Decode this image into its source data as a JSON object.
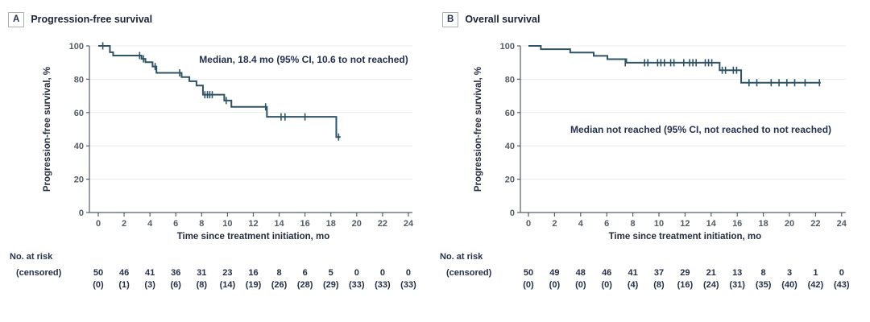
{
  "colors": {
    "curve": "#2e5364",
    "grid": "#ececec",
    "axis": "#555e66",
    "tick_text": "#525c64",
    "dark_text": "#243049",
    "annotation_text": "#24304f",
    "panel_title_text": "#1b2334"
  },
  "chart_data": [
    {
      "type": "line",
      "subtype": "kaplan_meier_step",
      "panel_label": "A",
      "title": "Progression-free survival",
      "ylabel": "Progression-free survival, %",
      "xlabel": "Time since treatment initiation, mo",
      "annotation": "Median, 18.4 mo (95% CI, 10.6 to not reached)",
      "xlim": [
        0,
        24
      ],
      "ylim": [
        0,
        100
      ],
      "xticks": [
        0,
        2,
        4,
        6,
        8,
        10,
        12,
        14,
        16,
        18,
        20,
        22,
        24
      ],
      "yticks": [
        0,
        20,
        40,
        60,
        80,
        100
      ],
      "grid": "horizontal-light",
      "legend": "none",
      "series": [
        {
          "name": "Progression-free survival",
          "start_level": 100,
          "drops": [
            [
              0.9,
              96.2
            ],
            [
              1.15,
              94.2
            ],
            [
              3.35,
              92.2
            ],
            [
              3.65,
              90.2
            ],
            [
              4.2,
              87.6
            ],
            [
              4.5,
              83.8
            ],
            [
              6.45,
              81.3
            ],
            [
              7.05,
              78.8
            ],
            [
              7.6,
              76.2
            ],
            [
              8.1,
              70.7
            ],
            [
              9.75,
              67.2
            ],
            [
              10.3,
              63.4
            ],
            [
              13.05,
              57.4
            ],
            [
              18.42,
              45.3
            ]
          ],
          "end_time": 18.75,
          "censor_marks": [
            [
              0.35,
              100
            ],
            [
              3.2,
              94.2
            ],
            [
              3.5,
              92.2
            ],
            [
              4.4,
              87.6
            ],
            [
              6.3,
              83.8
            ],
            [
              8.25,
              70.7
            ],
            [
              8.45,
              70.7
            ],
            [
              8.63,
              70.7
            ],
            [
              8.82,
              70.7
            ],
            [
              9.9,
              67.2
            ],
            [
              12.95,
              63.4
            ],
            [
              14.15,
              57.4
            ],
            [
              14.45,
              57.4
            ],
            [
              16.0,
              57.4
            ],
            [
              18.6,
              45.3
            ]
          ]
        }
      ],
      "at_risk": {
        "row1_label": "No. at risk",
        "row2_label": "(censored)",
        "times": [
          0,
          2,
          4,
          6,
          8,
          10,
          12,
          14,
          16,
          18,
          20,
          22,
          24
        ],
        "n_at_risk": [
          "50",
          "46",
          "41",
          "36",
          "31",
          "23",
          "16",
          "8",
          "6",
          "5",
          "0",
          "0",
          "0"
        ],
        "n_censored": [
          "(0)",
          "(1)",
          "(3)",
          "(6)",
          "(8)",
          "(14)",
          "(19)",
          "(26)",
          "(28)",
          "(29)",
          "(33)",
          "(33)",
          "(33)"
        ]
      }
    },
    {
      "type": "line",
      "subtype": "kaplan_meier_step",
      "panel_label": "B",
      "title": "Overall survival",
      "ylabel": "Progression-free survival, %",
      "xlabel": "Time since treatment initiation, mo",
      "annotation": "Median not reached (95% CI, not reached to not reached)",
      "xlim": [
        0,
        24
      ],
      "ylim": [
        0,
        100
      ],
      "xticks": [
        0,
        2,
        4,
        6,
        8,
        10,
        12,
        14,
        16,
        18,
        20,
        22,
        24
      ],
      "yticks": [
        0,
        20,
        40,
        60,
        80,
        100
      ],
      "grid": "horizontal-light",
      "legend": "none",
      "series": [
        {
          "name": "Overall survival",
          "start_level": 100,
          "drops": [
            [
              0.95,
              98.0
            ],
            [
              3.2,
              96.0
            ],
            [
              5.0,
              94.0
            ],
            [
              6.05,
              92.0
            ],
            [
              7.5,
              89.9
            ],
            [
              14.65,
              85.4
            ],
            [
              16.3,
              77.9
            ]
          ],
          "end_time": 22.4,
          "censor_marks": [
            [
              7.42,
              89.9
            ],
            [
              8.9,
              89.9
            ],
            [
              9.15,
              89.9
            ],
            [
              9.9,
              89.9
            ],
            [
              10.15,
              89.9
            ],
            [
              10.42,
              89.9
            ],
            [
              10.9,
              89.9
            ],
            [
              11.15,
              89.9
            ],
            [
              11.9,
              89.9
            ],
            [
              12.35,
              89.9
            ],
            [
              12.6,
              89.9
            ],
            [
              12.85,
              89.9
            ],
            [
              13.55,
              89.9
            ],
            [
              13.8,
              89.9
            ],
            [
              14.05,
              89.9
            ],
            [
              14.85,
              85.4
            ],
            [
              15.1,
              85.4
            ],
            [
              15.7,
              85.4
            ],
            [
              15.95,
              85.4
            ],
            [
              16.9,
              77.9
            ],
            [
              17.5,
              77.9
            ],
            [
              18.6,
              77.9
            ],
            [
              19.2,
              77.9
            ],
            [
              19.8,
              77.9
            ],
            [
              20.4,
              77.9
            ],
            [
              21.2,
              77.9
            ],
            [
              22.3,
              77.9
            ]
          ]
        }
      ],
      "at_risk": {
        "row1_label": "No. at risk",
        "row2_label": "(censored)",
        "times": [
          0,
          2,
          4,
          6,
          8,
          10,
          12,
          14,
          16,
          18,
          20,
          22,
          24
        ],
        "n_at_risk": [
          "50",
          "49",
          "48",
          "46",
          "41",
          "37",
          "29",
          "21",
          "13",
          "8",
          "3",
          "1",
          "0"
        ],
        "n_censored": [
          "(0)",
          "(0)",
          "(0)",
          "(0)",
          "(4)",
          "(8)",
          "(16)",
          "(24)",
          "(31)",
          "(35)",
          "(40)",
          "(42)",
          "(43)"
        ]
      }
    }
  ]
}
